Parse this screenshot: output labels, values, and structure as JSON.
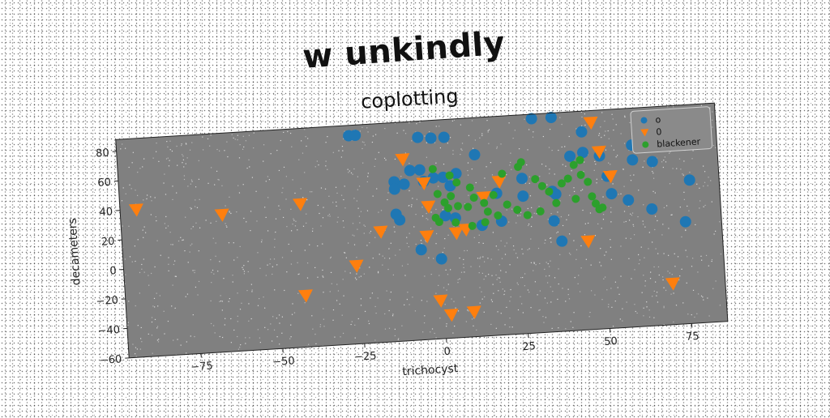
{
  "figure": {
    "title": "w unkindly"
  },
  "chart_data": {
    "type": "scatter",
    "title": "coplotting",
    "xlabel": "trichocyst",
    "ylabel": "decameters",
    "xlim": [
      -97,
      86
    ],
    "ylim": [
      -60,
      88
    ],
    "xticks": [
      -75,
      -50,
      -25,
      0,
      25,
      50,
      75
    ],
    "yticks": [
      -60,
      -40,
      -20,
      0,
      20,
      40,
      60,
      80
    ],
    "xtick_labels": [
      "−75",
      "−50",
      "−25",
      "0",
      "25",
      "50",
      "75"
    ],
    "ytick_labels": [
      "−60",
      "−40",
      "−20",
      "0",
      "20",
      "40",
      "60",
      "80"
    ],
    "grid": false,
    "legend_position": "top-right",
    "background": "#808080",
    "series": [
      {
        "name": "o",
        "marker": "circle",
        "color": "#1f77b4",
        "points": [
          [
            -26,
            81
          ],
          [
            -24,
            81
          ],
          [
            -5,
            77
          ],
          [
            -1,
            76
          ],
          [
            3,
            76
          ],
          [
            30,
            85
          ],
          [
            36,
            85
          ],
          [
            45,
            74
          ],
          [
            12,
            63
          ],
          [
            60,
            63
          ],
          [
            45,
            60
          ],
          [
            41,
            58
          ],
          [
            50,
            57
          ],
          [
            -5,
            55
          ],
          [
            -8,
            55
          ],
          [
            6,
            51
          ],
          [
            -1,
            49
          ],
          [
            2,
            49
          ],
          [
            60,
            53
          ],
          [
            66,
            51
          ],
          [
            -13,
            48
          ],
          [
            -10,
            46
          ],
          [
            26,
            45
          ],
          [
            -13,
            43
          ],
          [
            4,
            43
          ],
          [
            52,
            43
          ],
          [
            77,
            37
          ],
          [
            18,
            36
          ],
          [
            35,
            35
          ],
          [
            36,
            33
          ],
          [
            26,
            33
          ],
          [
            53,
            31
          ],
          [
            58,
            26
          ],
          [
            -12,
            22
          ],
          [
            2,
            23
          ],
          [
            5,
            21
          ],
          [
            65,
            19
          ],
          [
            13,
            15
          ],
          [
            19,
            17
          ],
          [
            35,
            15
          ],
          [
            75,
            9
          ],
          [
            -6,
            1
          ],
          [
            0,
            -6
          ],
          [
            37,
            1
          ],
          [
            -13,
            26
          ],
          [
            -4,
            47
          ]
        ]
      },
      {
        "name": "0",
        "marker": "triangle-down",
        "color": "#ff7f0e",
        "points": [
          [
            -92,
            40
          ],
          [
            -66,
            33
          ],
          [
            -42,
            37
          ],
          [
            -18,
            15
          ],
          [
            -10,
            63
          ],
          [
            -4,
            46
          ],
          [
            -3,
            30
          ],
          [
            -26,
            -7
          ],
          [
            -42,
            -25
          ],
          [
            -1,
            -34
          ],
          [
            2,
            -44
          ],
          [
            9,
            -43
          ],
          [
            5,
            11
          ],
          [
            -4,
            10
          ],
          [
            8,
            13
          ],
          [
            19,
            44
          ],
          [
            14,
            34
          ],
          [
            48,
            80
          ],
          [
            50,
            60
          ],
          [
            53,
            43
          ],
          [
            45,
            0
          ],
          [
            70,
            -32
          ]
        ]
      },
      {
        "name": "blackener",
        "marker": "circle",
        "color": "#2ca02c",
        "points": [
          [
            -1,
            55
          ],
          [
            4,
            50
          ],
          [
            0,
            38
          ],
          [
            4,
            36
          ],
          [
            2,
            32
          ],
          [
            6,
            29
          ],
          [
            11,
            34
          ],
          [
            9,
            28
          ],
          [
            14,
            30
          ],
          [
            15,
            24
          ],
          [
            20,
            49
          ],
          [
            25,
            53
          ],
          [
            26,
            56
          ],
          [
            30,
            44
          ],
          [
            32,
            39
          ],
          [
            34,
            35
          ],
          [
            38,
            40
          ],
          [
            40,
            43
          ],
          [
            42,
            52
          ],
          [
            44,
            55
          ],
          [
            44,
            45
          ],
          [
            46,
            40
          ],
          [
            47,
            30
          ],
          [
            48,
            25
          ],
          [
            49,
            21
          ],
          [
            50,
            22
          ],
          [
            42,
            29
          ],
          [
            36,
            27
          ],
          [
            31,
            22
          ],
          [
            27,
            20
          ],
          [
            24,
            24
          ],
          [
            21,
            28
          ],
          [
            17,
            35
          ],
          [
            10,
            41
          ],
          [
            6,
            45
          ],
          [
            3,
            28
          ],
          [
            -1,
            22
          ],
          [
            0,
            19
          ],
          [
            5,
            18
          ],
          [
            10,
            15
          ],
          [
            14,
            17
          ],
          [
            18,
            21
          ]
        ]
      }
    ]
  }
}
